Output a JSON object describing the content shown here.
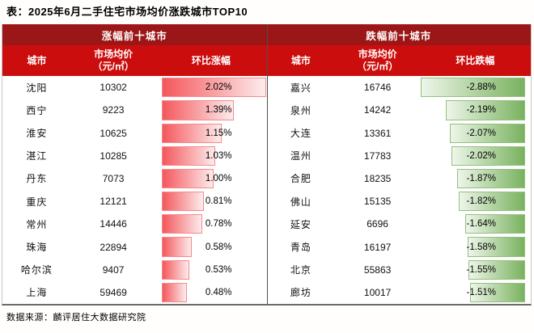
{
  "title": "表：2025年6月二手住宅市场均价涨跌城市TOP10",
  "source": "数据来源：麟评居住大数据研究院",
  "colors": {
    "accent_dark_red": "#9b1616",
    "accent_red": "#cc0d0d",
    "bar_red_start": "#f4575c",
    "bar_red_end": "#fdecec",
    "bar_red_border": "#f58a8e",
    "bar_green_start": "#eef6ea",
    "bar_green_end": "#79b25f",
    "bar_green_border": "#94c07e"
  },
  "panels": {
    "up": {
      "header": "涨幅前十城市",
      "columns": {
        "city": "城市",
        "price1": "市场均价",
        "price2": "（元/㎡）",
        "rate": "环比涨幅"
      },
      "rows": [
        {
          "city": "沈阳",
          "price": "10302",
          "rate": "2.02%",
          "value": 2.02
        },
        {
          "city": "西宁",
          "price": "9223",
          "rate": "1.39%",
          "value": 1.39
        },
        {
          "city": "淮安",
          "price": "10625",
          "rate": "1.15%",
          "value": 1.15
        },
        {
          "city": "湛江",
          "price": "10285",
          "rate": "1.03%",
          "value": 1.03
        },
        {
          "city": "丹东",
          "price": "7073",
          "rate": "1.00%",
          "value": 1.0
        },
        {
          "city": "重庆",
          "price": "12121",
          "rate": "0.81%",
          "value": 0.81
        },
        {
          "city": "常州",
          "price": "14446",
          "rate": "0.78%",
          "value": 0.78
        },
        {
          "city": "珠海",
          "price": "22894",
          "rate": "0.58%",
          "value": 0.58
        },
        {
          "city": "哈尔滨",
          "price": "9407",
          "rate": "0.53%",
          "value": 0.53
        },
        {
          "city": "上海",
          "price": "59469",
          "rate": "0.48%",
          "value": 0.48
        }
      ]
    },
    "down": {
      "header": "跌幅前十城市",
      "columns": {
        "city": "城市",
        "price1": "市场均价",
        "price2": "（元/㎡）",
        "rate": "环比跌幅"
      },
      "rows": [
        {
          "city": "嘉兴",
          "price": "16746",
          "rate": "-2.88%",
          "value": -2.88
        },
        {
          "city": "泉州",
          "price": "14242",
          "rate": "-2.19%",
          "value": -2.19
        },
        {
          "city": "大连",
          "price": "13361",
          "rate": "-2.07%",
          "value": -2.07
        },
        {
          "city": "温州",
          "price": "17783",
          "rate": "-2.02%",
          "value": -2.02
        },
        {
          "city": "合肥",
          "price": "18235",
          "rate": "-1.87%",
          "value": -1.87
        },
        {
          "city": "佛山",
          "price": "15135",
          "rate": "-1.82%",
          "value": -1.82
        },
        {
          "city": "延安",
          "price": "6696",
          "rate": "-1.64%",
          "value": -1.64
        },
        {
          "city": "青岛",
          "price": "16197",
          "rate": "-1.58%",
          "value": -1.58
        },
        {
          "city": "北京",
          "price": "55863",
          "rate": "-1.55%",
          "value": -1.55
        },
        {
          "city": "廊坊",
          "price": "10017",
          "rate": "-1.51%",
          "value": -1.51
        }
      ]
    }
  },
  "chart_data": [
    {
      "type": "bar",
      "title": "涨幅前十城市",
      "categories": [
        "沈阳",
        "西宁",
        "淮安",
        "湛江",
        "丹东",
        "重庆",
        "常州",
        "珠海",
        "哈尔滨",
        "上海"
      ],
      "series": [
        {
          "name": "市场均价（元/㎡）",
          "values": [
            10302,
            9223,
            10625,
            10285,
            7073,
            12121,
            14446,
            22894,
            9407,
            59469
          ]
        },
        {
          "name": "环比涨幅(%)",
          "values": [
            2.02,
            1.39,
            1.15,
            1.03,
            1.0,
            0.81,
            0.78,
            0.58,
            0.53,
            0.48
          ]
        }
      ],
      "xlabel": "城市",
      "ylabel": "环比涨幅",
      "ylim": [
        0,
        2.02
      ],
      "bar_color": "red-gradient"
    },
    {
      "type": "bar",
      "title": "跌幅前十城市",
      "categories": [
        "嘉兴",
        "泉州",
        "大连",
        "温州",
        "合肥",
        "佛山",
        "延安",
        "青岛",
        "北京",
        "廊坊"
      ],
      "series": [
        {
          "name": "市场均价（元/㎡）",
          "values": [
            16746,
            14242,
            13361,
            17783,
            18235,
            15135,
            6696,
            16197,
            55863,
            10017
          ]
        },
        {
          "name": "环比跌幅(%)",
          "values": [
            -2.88,
            -2.19,
            -2.07,
            -2.02,
            -1.87,
            -1.82,
            -1.64,
            -1.58,
            -1.55,
            -1.51
          ]
        }
      ],
      "xlabel": "城市",
      "ylabel": "环比跌幅",
      "ylim": [
        -2.88,
        0
      ],
      "bar_color": "green-gradient"
    }
  ]
}
